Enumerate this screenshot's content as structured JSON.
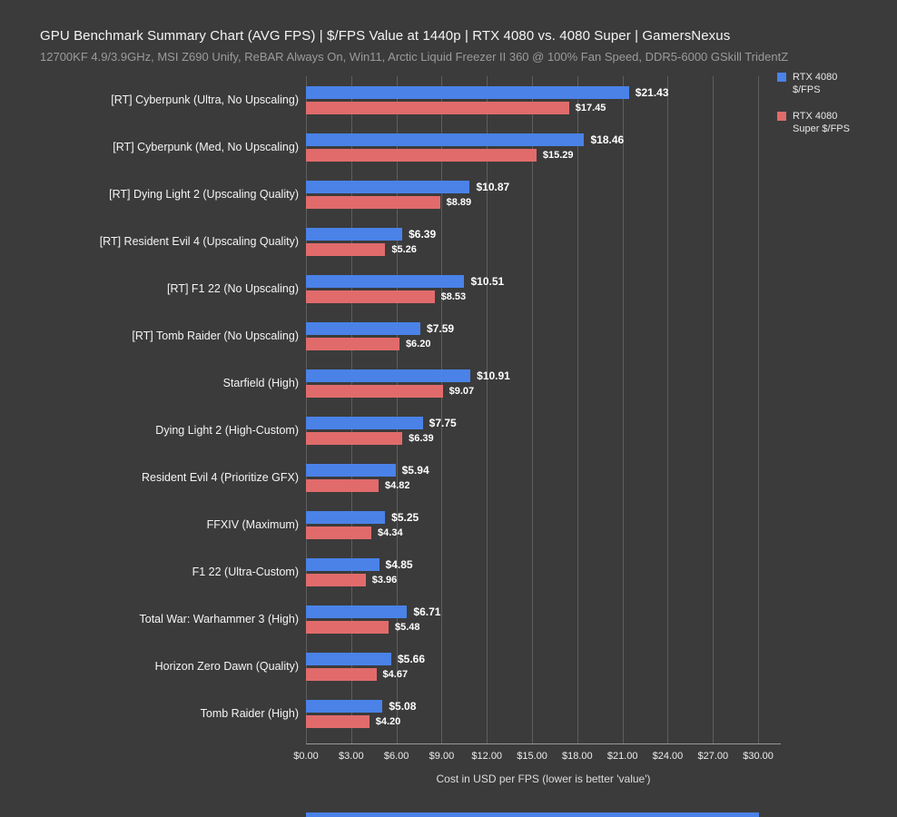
{
  "header": {
    "title": "GPU Benchmark Summary Chart (AVG FPS) | $/FPS Value at 1440p | RTX 4080 vs. 4080 Super | GamersNexus",
    "subtitle": "12700KF 4.9/3.9GHz, MSI Z690 Unify, ReBAR Always On, Win11, Arctic Liquid Freezer II 360 @ 100% Fan Speed, DDR5-6000 GSkill TridentZ"
  },
  "legend": [
    {
      "label": "RTX 4080 $/FPS",
      "color": "#4a82e8"
    },
    {
      "label": "RTX 4080 Super $/FPS",
      "color": "#e16b6b"
    }
  ],
  "colors": {
    "background": "#3b3b3b",
    "gridline": "#5e5e5e",
    "text_primary": "#f4f4f4",
    "text_muted": "#9b9b9b"
  },
  "chart_data": {
    "type": "bar",
    "orientation": "horizontal",
    "title": "GPU Benchmark Summary Chart (AVG FPS) | $/FPS Value at 1440p | RTX 4080 vs. 4080 Super | GamersNexus",
    "xlabel": "Cost in USD per FPS (lower is better 'value')",
    "ylabel": "",
    "xlim": [
      0,
      31.5
    ],
    "x_ticks": [
      0,
      3,
      6,
      9,
      12,
      15,
      18,
      21,
      24,
      27,
      30
    ],
    "x_tick_labels": [
      "$0.00",
      "$3.00",
      "$6.00",
      "$9.00",
      "$12.00",
      "$15.00",
      "$18.00",
      "$21.00",
      "$24.00",
      "$27.00",
      "$30.00"
    ],
    "grid": true,
    "legend_position": "top-right",
    "value_prefix": "$",
    "categories": [
      "[RT] Cyberpunk (Ultra, No Upscaling)",
      "[RT] Cyberpunk (Med, No Upscaling)",
      "[RT] Dying Light 2 (Upscaling Quality)",
      "[RT] Resident Evil 4 (Upscaling Quality)",
      "[RT] F1 22 (No Upscaling)",
      "[RT] Tomb Raider (No Upscaling)",
      "Starfield (High)",
      "Dying Light 2 (High-Custom)",
      "Resident Evil 4 (Prioritize GFX)",
      "FFXIV (Maximum)",
      "F1 22 (Ultra-Custom)",
      "Total War: Warhammer 3 (High)",
      "Horizon Zero Dawn (Quality)",
      "Tomb Raider (High)"
    ],
    "series": [
      {
        "name": "RTX 4080 $/FPS",
        "key": "rtx-4080",
        "color": "#4a82e8",
        "values": [
          21.43,
          18.46,
          10.87,
          6.39,
          10.51,
          7.59,
          10.91,
          7.75,
          5.94,
          5.25,
          4.85,
          6.71,
          5.66,
          5.08
        ]
      },
      {
        "name": "RTX 4080 Super $/FPS",
        "key": "rtx-4080-super",
        "color": "#e16b6b",
        "values": [
          17.45,
          15.29,
          8.89,
          5.26,
          8.53,
          6.2,
          9.07,
          6.39,
          4.82,
          4.34,
          3.96,
          5.48,
          4.67,
          4.2
        ]
      }
    ]
  }
}
